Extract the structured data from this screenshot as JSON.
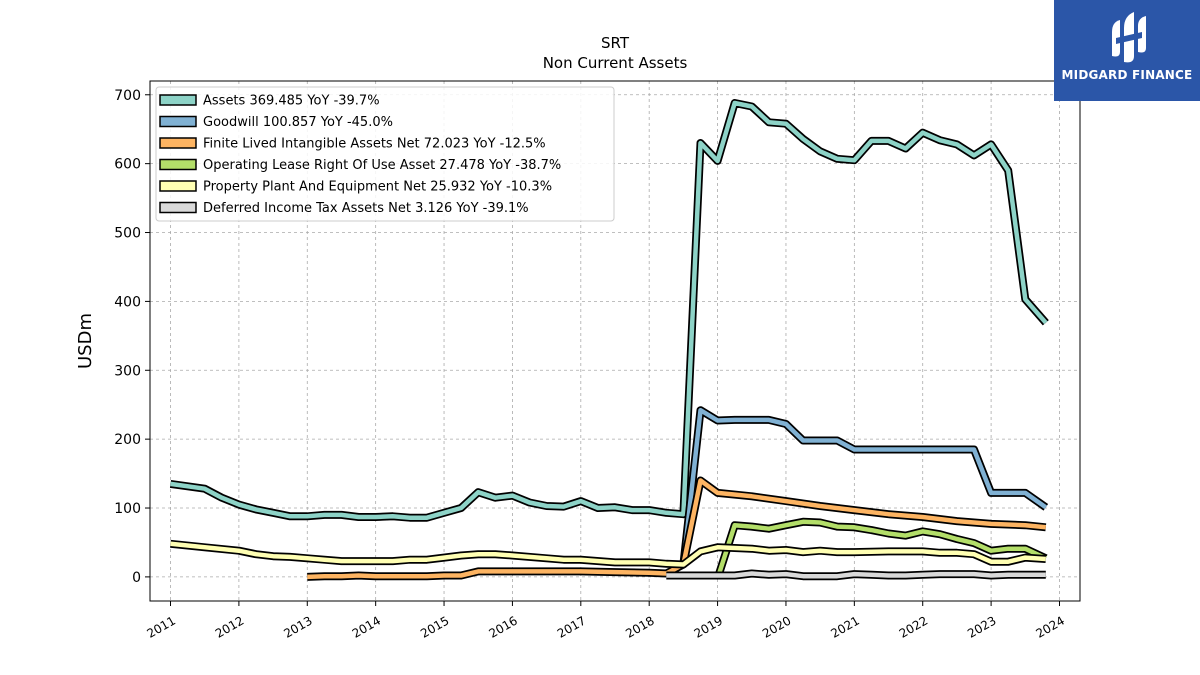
{
  "chart_data": {
    "type": "line",
    "title": "SRT",
    "subtitle": "Non Current  Assets",
    "ylabel": "USDm",
    "xlabel": "",
    "xlim": [
      2010.7,
      2024.3
    ],
    "ylim": [
      -35,
      720
    ],
    "yticks": [
      0,
      100,
      200,
      300,
      400,
      500,
      600,
      700
    ],
    "xticks": [
      2011,
      2012,
      2013,
      2014,
      2015,
      2016,
      2017,
      2018,
      2019,
      2020,
      2021,
      2022,
      2023,
      2024
    ],
    "grid": true,
    "legend_position": "top-left",
    "series": [
      {
        "name": "Assets  369.485 YoY -39.7%",
        "color": "#8dd3c7",
        "points": [
          [
            2011.0,
            135
          ],
          [
            2011.5,
            128
          ],
          [
            2011.75,
            115
          ],
          [
            2012.0,
            105
          ],
          [
            2012.25,
            98
          ],
          [
            2012.5,
            93
          ],
          [
            2012.75,
            88
          ],
          [
            2013.0,
            88
          ],
          [
            2013.25,
            90
          ],
          [
            2013.5,
            90
          ],
          [
            2013.75,
            87
          ],
          [
            2014.0,
            87
          ],
          [
            2014.25,
            88
          ],
          [
            2014.5,
            86
          ],
          [
            2014.75,
            86
          ],
          [
            2015.0,
            93
          ],
          [
            2015.25,
            100
          ],
          [
            2015.5,
            123
          ],
          [
            2015.75,
            115
          ],
          [
            2016.0,
            118
          ],
          [
            2016.25,
            108
          ],
          [
            2016.5,
            103
          ],
          [
            2016.75,
            102
          ],
          [
            2017.0,
            110
          ],
          [
            2017.25,
            100
          ],
          [
            2017.5,
            101
          ],
          [
            2017.75,
            97
          ],
          [
            2018.0,
            97
          ],
          [
            2018.25,
            93
          ],
          [
            2018.5,
            91
          ],
          [
            2018.75,
            630
          ],
          [
            2019.0,
            604
          ],
          [
            2019.25,
            688
          ],
          [
            2019.5,
            683
          ],
          [
            2019.75,
            660
          ],
          [
            2020.0,
            658
          ],
          [
            2020.25,
            636
          ],
          [
            2020.5,
            618
          ],
          [
            2020.75,
            607
          ],
          [
            2021.0,
            605
          ],
          [
            2021.25,
            633
          ],
          [
            2021.5,
            633
          ],
          [
            2021.75,
            622
          ],
          [
            2022.0,
            645
          ],
          [
            2022.25,
            634
          ],
          [
            2022.5,
            628
          ],
          [
            2022.75,
            612
          ],
          [
            2023.0,
            628
          ],
          [
            2023.25,
            590
          ],
          [
            2023.5,
            403
          ],
          [
            2023.8,
            369
          ]
        ]
      },
      {
        "name": "Goodwill  100.857 YoY -45.0%",
        "color": "#80b1d3",
        "points": [
          [
            2018.5,
            18
          ],
          [
            2018.75,
            242
          ],
          [
            2019.0,
            227
          ],
          [
            2019.25,
            228
          ],
          [
            2019.5,
            228
          ],
          [
            2019.75,
            228
          ],
          [
            2020.0,
            222
          ],
          [
            2020.25,
            198
          ],
          [
            2020.5,
            198
          ],
          [
            2020.75,
            198
          ],
          [
            2021.0,
            185
          ],
          [
            2021.25,
            185
          ],
          [
            2021.5,
            185
          ],
          [
            2021.75,
            185
          ],
          [
            2022.0,
            185
          ],
          [
            2022.25,
            185
          ],
          [
            2022.5,
            185
          ],
          [
            2022.75,
            185
          ],
          [
            2023.0,
            122
          ],
          [
            2023.25,
            122
          ],
          [
            2023.5,
            122
          ],
          [
            2023.8,
            101
          ]
        ]
      },
      {
        "name": "Finite Lived Intangible Assets Net  72.023 YoY -12.5%",
        "color": "#fdb462",
        "points": [
          [
            2013.0,
            0
          ],
          [
            2013.25,
            1
          ],
          [
            2013.5,
            1
          ],
          [
            2013.75,
            2
          ],
          [
            2014.0,
            1
          ],
          [
            2014.5,
            1
          ],
          [
            2014.75,
            1
          ],
          [
            2015.0,
            2
          ],
          [
            2015.25,
            2
          ],
          [
            2015.5,
            8
          ],
          [
            2015.75,
            8
          ],
          [
            2016.0,
            8
          ],
          [
            2016.5,
            8
          ],
          [
            2017.0,
            8
          ],
          [
            2017.5,
            7
          ],
          [
            2018.0,
            6
          ],
          [
            2018.25,
            5
          ],
          [
            2018.5,
            18
          ],
          [
            2018.75,
            140
          ],
          [
            2019.0,
            122
          ],
          [
            2019.5,
            117
          ],
          [
            2020.0,
            110
          ],
          [
            2020.5,
            103
          ],
          [
            2021.0,
            97
          ],
          [
            2021.5,
            91
          ],
          [
            2022.0,
            87
          ],
          [
            2022.5,
            81
          ],
          [
            2023.0,
            77
          ],
          [
            2023.5,
            75
          ],
          [
            2023.8,
            72
          ]
        ]
      },
      {
        "name": "Operating Lease Right Of Use Asset  27.478 YoY -38.7%",
        "color": "#b3de69",
        "points": [
          [
            2019.0,
            -2
          ],
          [
            2019.25,
            75
          ],
          [
            2019.5,
            73
          ],
          [
            2019.75,
            70
          ],
          [
            2020.0,
            75
          ],
          [
            2020.25,
            80
          ],
          [
            2020.5,
            79
          ],
          [
            2020.75,
            73
          ],
          [
            2021.0,
            72
          ],
          [
            2021.25,
            68
          ],
          [
            2021.5,
            63
          ],
          [
            2021.75,
            60
          ],
          [
            2022.0,
            66
          ],
          [
            2022.25,
            62
          ],
          [
            2022.5,
            55
          ],
          [
            2022.75,
            49
          ],
          [
            2023.0,
            38
          ],
          [
            2023.25,
            41
          ],
          [
            2023.5,
            41
          ],
          [
            2023.8,
            27
          ]
        ]
      },
      {
        "name": "Property Plant And Equipment Net  25.932 YoY -10.3%",
        "color": "#ffffb3",
        "points": [
          [
            2011.0,
            48
          ],
          [
            2011.5,
            43
          ],
          [
            2012.0,
            38
          ],
          [
            2012.25,
            33
          ],
          [
            2012.5,
            30
          ],
          [
            2012.75,
            29
          ],
          [
            2013.0,
            27
          ],
          [
            2013.25,
            25
          ],
          [
            2013.5,
            23
          ],
          [
            2013.75,
            23
          ],
          [
            2014.0,
            23
          ],
          [
            2014.25,
            23
          ],
          [
            2014.5,
            25
          ],
          [
            2014.75,
            25
          ],
          [
            2015.0,
            28
          ],
          [
            2015.25,
            31
          ],
          [
            2015.5,
            33
          ],
          [
            2015.75,
            33
          ],
          [
            2016.0,
            31
          ],
          [
            2016.5,
            27
          ],
          [
            2016.75,
            25
          ],
          [
            2017.0,
            25
          ],
          [
            2017.5,
            21
          ],
          [
            2017.75,
            21
          ],
          [
            2018.0,
            21
          ],
          [
            2018.25,
            19
          ],
          [
            2018.5,
            18
          ],
          [
            2018.75,
            37
          ],
          [
            2019.0,
            43
          ],
          [
            2019.5,
            41
          ],
          [
            2019.75,
            38
          ],
          [
            2020.0,
            39
          ],
          [
            2020.25,
            36
          ],
          [
            2020.5,
            38
          ],
          [
            2020.75,
            36
          ],
          [
            2021.0,
            36
          ],
          [
            2021.5,
            37
          ],
          [
            2021.75,
            37
          ],
          [
            2022.0,
            37
          ],
          [
            2022.25,
            35
          ],
          [
            2022.5,
            35
          ],
          [
            2022.75,
            33
          ],
          [
            2023.0,
            22
          ],
          [
            2023.25,
            22
          ],
          [
            2023.5,
            28
          ],
          [
            2023.8,
            26
          ]
        ]
      },
      {
        "name": "Deferred Income Tax Assets Net  3.126 YoY -39.1%",
        "color": "#d9d9d9",
        "points": [
          [
            2018.25,
            2
          ],
          [
            2018.5,
            2
          ],
          [
            2018.75,
            2
          ],
          [
            2019.0,
            2
          ],
          [
            2019.25,
            2
          ],
          [
            2019.5,
            5
          ],
          [
            2019.75,
            3
          ],
          [
            2020.0,
            4
          ],
          [
            2020.25,
            1
          ],
          [
            2020.5,
            1
          ],
          [
            2020.75,
            1
          ],
          [
            2021.0,
            4
          ],
          [
            2021.25,
            3
          ],
          [
            2021.5,
            2
          ],
          [
            2021.75,
            2
          ],
          [
            2022.0,
            3
          ],
          [
            2022.25,
            4
          ],
          [
            2022.5,
            4
          ],
          [
            2022.75,
            4
          ],
          [
            2023.0,
            2
          ],
          [
            2023.25,
            3
          ],
          [
            2023.5,
            3
          ],
          [
            2023.8,
            3
          ]
        ]
      }
    ]
  },
  "logo": {
    "text": "MIDGARD FINANCE",
    "background": "#2b56a8"
  }
}
